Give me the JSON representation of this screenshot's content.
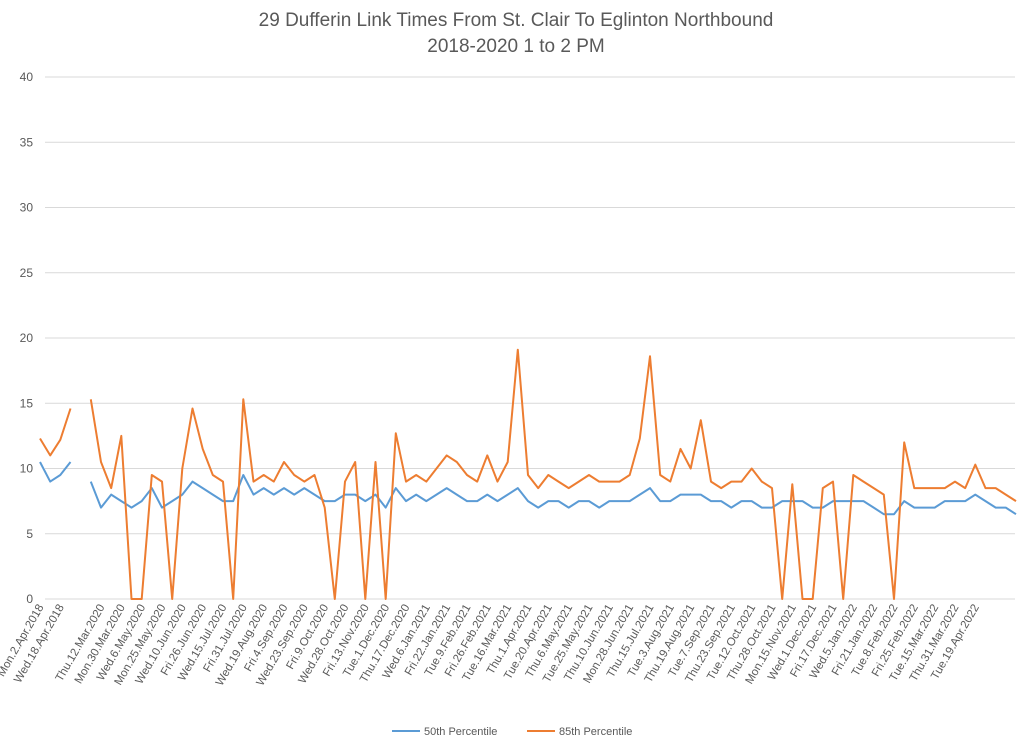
{
  "chart_data": {
    "type": "line",
    "title": "29 Dufferin Link Times From St. Clair To Eglinton Northbound",
    "subtitle": "2018-2020 1 to 2 PM",
    "categories": [
      "Mon.2.Apr.2018",
      null,
      "Wed.18.Apr.2018",
      null,
      null,
      null,
      "Thu.12.Mar.2020",
      null,
      "Mon.30.Mar.2020",
      null,
      "Wed.6.May.2020",
      null,
      "Mon.25.May.2020",
      null,
      "Wed.10.Jun.2020",
      null,
      "Fri.26.Jun.2020",
      null,
      "Wed.15.Jul.2020",
      null,
      "Fri.31.Jul.2020",
      null,
      "Wed.19.Aug.2020",
      null,
      "Fri.4.Sep.2020",
      null,
      "Wed.23.Sep.2020",
      null,
      "Fri.9.Oct.2020",
      null,
      "Wed.28.Oct.2020",
      null,
      "Fri.13.Nov.2020",
      null,
      "Tue.1.Dec.2020",
      null,
      "Thu.17.Dec.2020",
      null,
      "Wed.6.Jan.2021",
      null,
      "Fri.22.Jan.2021",
      null,
      "Tue.9.Feb.2021",
      null,
      "Fri.26.Feb.2021",
      null,
      "Tue.16.Mar.2021",
      null,
      "Thu.1.Apr.2021",
      null,
      "Tue.20.Apr.2021",
      null,
      "Thu.6.May.2021",
      null,
      "Tue.25.May.2021",
      null,
      "Thu.10.Jun.2021",
      null,
      "Mon.28.Jun.2021",
      null,
      "Thu.15.Jul.2021",
      null,
      "Tue.3.Aug.2021",
      null,
      "Thu.19.Aug.2021",
      null,
      "Tue.7.Sep.2021",
      null,
      "Thu.23.Sep.2021",
      null,
      "Tue.12.Oct.2021",
      null,
      "Thu.28.Oct.2021",
      null,
      "Mon.15.Nov.2021",
      null,
      "Wed.1.Dec.2021",
      null,
      "Fri.17.Dec.2021",
      null,
      "Wed.5.Jan.2022",
      null,
      "Fri.21.Jan.2022",
      null,
      "Tue.8.Feb.2022",
      null,
      "Fri.25.Feb.2022",
      null,
      "Tue.15.Mar.2022",
      null,
      "Thu.31.Mar.2022",
      null,
      "Tue.19.Apr.2022",
      null,
      null,
      null,
      null
    ],
    "series": [
      {
        "name": "50th Percentile",
        "color": "#5b9bd5",
        "values": [
          10.5,
          9,
          9.5,
          10.5,
          null,
          9,
          7,
          8,
          7.5,
          7,
          7.5,
          8.5,
          7,
          7.5,
          8,
          9,
          8.5,
          8,
          7.5,
          7.5,
          9.5,
          8,
          8.5,
          8,
          8.5,
          8,
          8.5,
          8,
          7.5,
          7.5,
          8,
          8,
          7.5,
          8,
          7,
          8.5,
          7.5,
          8,
          7.5,
          8,
          8.5,
          8,
          7.5,
          7.5,
          8,
          7.5,
          8,
          8.5,
          7.5,
          7,
          7.5,
          7.5,
          7,
          7.5,
          7.5,
          7,
          7.5,
          7.5,
          7.5,
          8,
          8.5,
          7.5,
          7.5,
          8,
          8,
          8,
          7.5,
          7.5,
          7,
          7.5,
          7.5,
          7,
          7,
          7.5,
          7.5,
          7.5,
          7,
          7,
          7.5,
          7.5,
          7.5,
          7.5,
          7,
          6.5,
          6.5,
          7.5,
          7,
          7,
          7,
          7.5,
          7.5,
          7.5,
          8,
          7.5,
          7,
          7,
          6.5
        ]
      },
      {
        "name": "85th Percentile",
        "color": "#ed7d31",
        "values": [
          12.3,
          11,
          12.2,
          14.6,
          null,
          15.3,
          10.5,
          8.5,
          12.5,
          0,
          0,
          9.5,
          9,
          0,
          10,
          14.6,
          11.5,
          9.5,
          9,
          0,
          15.3,
          9,
          9.5,
          9,
          10.5,
          9.5,
          9,
          9.5,
          7,
          0,
          9,
          10.5,
          0,
          10.5,
          0,
          12.7,
          9,
          9.5,
          9,
          10,
          11,
          10.5,
          9.5,
          9,
          11,
          9,
          10.5,
          19.1,
          9.5,
          8.5,
          9.5,
          9,
          8.5,
          9,
          9.5,
          9,
          9,
          9,
          9.5,
          12.3,
          18.6,
          9.5,
          9,
          11.5,
          10,
          13.7,
          9,
          8.5,
          9,
          9,
          10,
          9,
          8.5,
          0,
          8.8,
          0,
          0,
          8.5,
          9,
          0,
          9.5,
          9,
          8.5,
          8,
          0,
          12,
          8.5,
          8.5,
          8.5,
          8.5,
          9,
          8.5,
          10.3,
          8.5,
          8.5,
          8,
          7.5
        ]
      }
    ],
    "ylim": [
      0,
      40
    ],
    "yticks": [
      0,
      5,
      10,
      15,
      20,
      25,
      30,
      35,
      40
    ],
    "grid": true,
    "legend": "bottom"
  }
}
